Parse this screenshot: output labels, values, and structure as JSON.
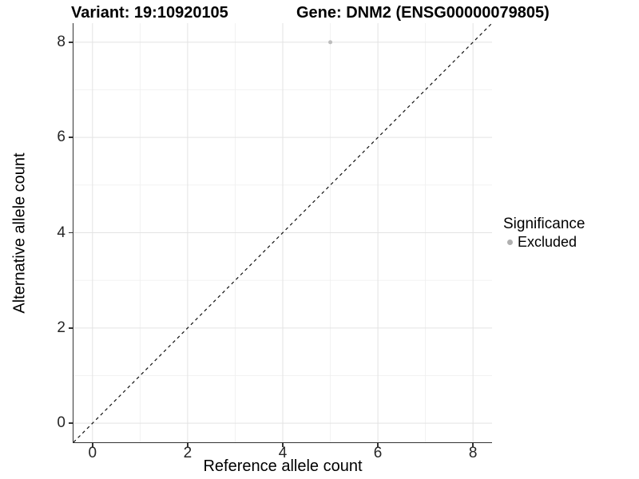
{
  "header": {
    "variant_title": "Variant: 19:10920105",
    "gene_title": "Gene: DNM2 (ENSG00000079805)"
  },
  "chart_data": {
    "type": "scatter",
    "xlabel": "Reference allele count",
    "ylabel": "Alternative allele count",
    "xlim": [
      -0.4,
      8.4
    ],
    "ylim": [
      -0.4,
      8.4
    ],
    "x_major_ticks": [
      0,
      2,
      4,
      6,
      8
    ],
    "y_major_ticks": [
      0,
      2,
      4,
      6,
      8
    ],
    "x_minor_gridlines": [
      1,
      3,
      5,
      7
    ],
    "y_minor_gridlines": [
      1,
      3,
      5,
      7
    ],
    "grid": "major-and-minor",
    "points": [
      {
        "x": 5,
        "y": 8,
        "series": "Excluded"
      }
    ],
    "identity_line": {
      "slope": 1,
      "intercept": 0,
      "style": "dashed"
    },
    "legend": {
      "title": "Significance",
      "position": "right",
      "entries": [
        {
          "label": "Excluded",
          "color": "#b0b0b0"
        }
      ]
    },
    "colors": {
      "point": "#bdbdbd",
      "grid_major": "#e3e3e3",
      "grid_minor": "#f0f0f0",
      "axis_line": "#333333",
      "dashed_line": "#111111",
      "tick_label": "#262626"
    }
  }
}
